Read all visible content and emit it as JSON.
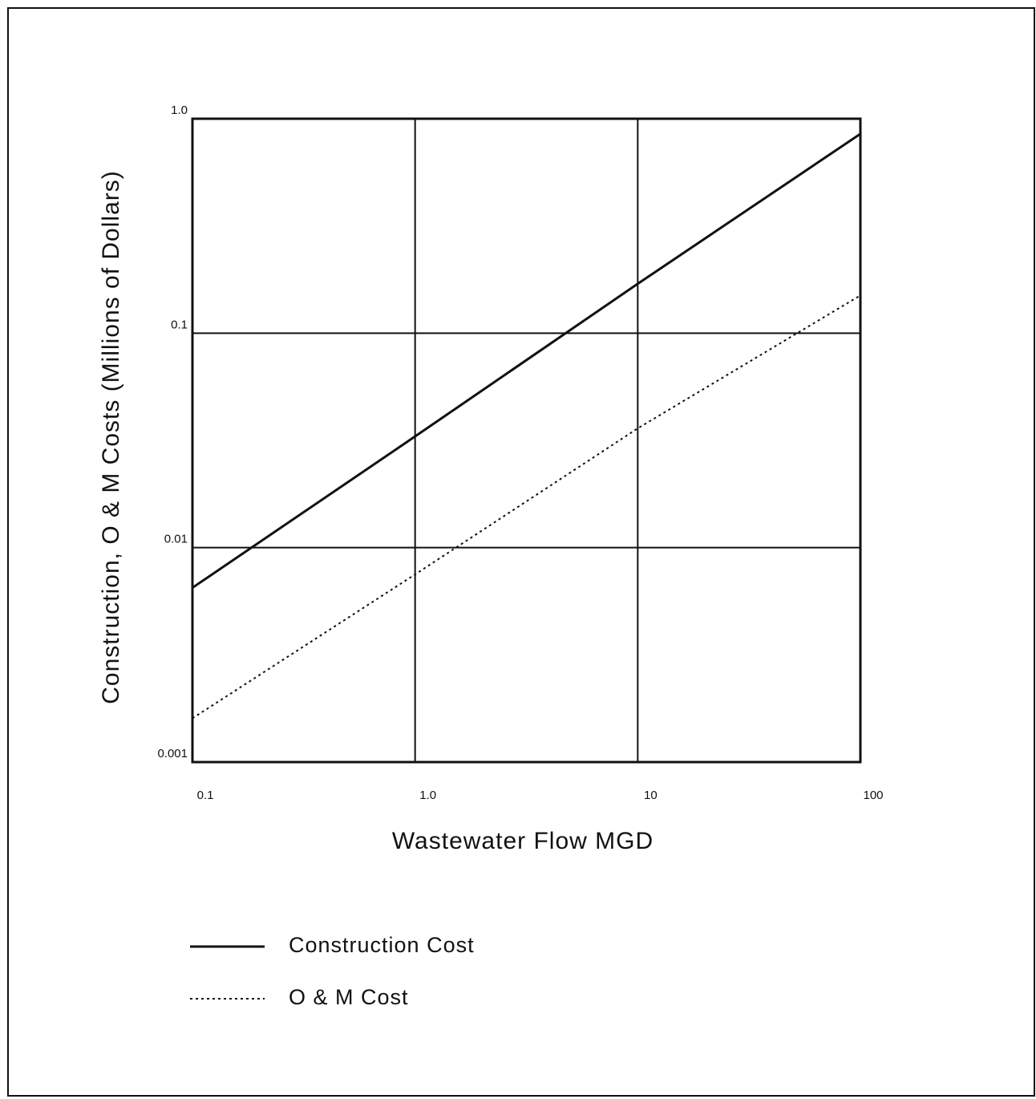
{
  "chart_data": {
    "type": "line",
    "xlabel": "Wastewater Flow MGD",
    "ylabel": "Construction, O & M Costs (Millions of Dollars)",
    "x": [
      0.1,
      1,
      10,
      100
    ],
    "series": [
      {
        "name": "Construction Cost",
        "color": "#111111",
        "style": "solid",
        "values": [
          0.0065,
          0.033,
          0.17,
          0.85
        ]
      },
      {
        "name": "O & M Cost",
        "color": "#111111",
        "style": "dotted",
        "values": [
          0.0016,
          0.0075,
          0.036,
          0.15
        ]
      }
    ],
    "xscale": "log",
    "yscale": "log",
    "xlim": [
      0.1,
      100
    ],
    "ylim": [
      0.001,
      1
    ],
    "xticks": [
      0.1,
      {
        "value": 1,
        "label": "1.0"
      },
      10,
      100
    ],
    "yticks": [
      0.001,
      0.01,
      0.1,
      {
        "value": 1,
        "label": "1.0"
      }
    ],
    "grid": true,
    "legend": "bottom"
  }
}
